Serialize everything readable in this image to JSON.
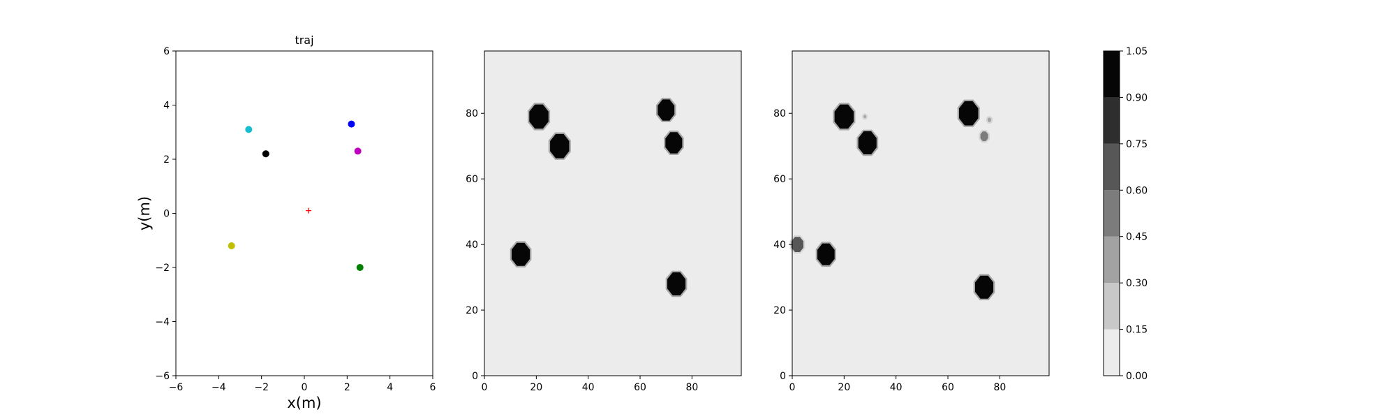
{
  "chart_data": [
    {
      "type": "scatter",
      "title": "traj",
      "xlabel": "x(m)",
      "ylabel": "y(m)",
      "xlim": [
        -6,
        6
      ],
      "ylim": [
        -6,
        6
      ],
      "xticks": [
        -6,
        -4,
        -2,
        0,
        2,
        4,
        6
      ],
      "yticks": [
        -6,
        -4,
        -2,
        0,
        2,
        4,
        6
      ],
      "grid": false,
      "points": [
        {
          "x": -2.6,
          "y": 3.1,
          "color": "#17becf",
          "marker": "dot"
        },
        {
          "x": 2.2,
          "y": 3.3,
          "color": "#0000ff",
          "marker": "dot"
        },
        {
          "x": -1.8,
          "y": 2.2,
          "color": "#000000",
          "marker": "dot"
        },
        {
          "x": 2.5,
          "y": 2.3,
          "color": "#bf00bf",
          "marker": "dot"
        },
        {
          "x": -3.4,
          "y": -1.2,
          "color": "#bfbf00",
          "marker": "dot"
        },
        {
          "x": 2.6,
          "y": -2.0,
          "color": "#008000",
          "marker": "dot"
        },
        {
          "x": 0.2,
          "y": 0.1,
          "color": "#ff0000",
          "marker": "plus"
        }
      ]
    },
    {
      "type": "heatmap",
      "xlim": [
        0,
        99
      ],
      "ylim": [
        0,
        99
      ],
      "xticks": [
        0,
        20,
        40,
        60,
        80
      ],
      "yticks": [
        0,
        20,
        40,
        60,
        80
      ],
      "background_level": 0.07,
      "blobs": [
        {
          "x": 21,
          "y": 79,
          "r": 4,
          "level": 1.0
        },
        {
          "x": 29,
          "y": 70,
          "r": 4,
          "level": 1.0
        },
        {
          "x": 70,
          "y": 81,
          "r": 3.5,
          "level": 1.0
        },
        {
          "x": 73,
          "y": 71,
          "r": 3.5,
          "level": 1.0
        },
        {
          "x": 14,
          "y": 37,
          "r": 3.8,
          "level": 1.0
        },
        {
          "x": 74,
          "y": 28,
          "r": 3.8,
          "level": 1.0
        }
      ]
    },
    {
      "type": "heatmap",
      "xlim": [
        0,
        99
      ],
      "ylim": [
        0,
        99
      ],
      "xticks": [
        0,
        20,
        40,
        60,
        80
      ],
      "yticks": [
        0,
        20,
        40,
        60,
        80
      ],
      "background_level": 0.07,
      "blobs": [
        {
          "x": 20,
          "y": 79,
          "r": 4,
          "level": 1.0
        },
        {
          "x": 29,
          "y": 71,
          "r": 3.8,
          "level": 1.0
        },
        {
          "x": 68,
          "y": 80,
          "r": 4,
          "level": 1.0
        },
        {
          "x": 74,
          "y": 73,
          "r": 1.6,
          "level": 0.55
        },
        {
          "x": 76,
          "y": 78,
          "r": 0.7,
          "level": 0.3
        },
        {
          "x": 28,
          "y": 79,
          "r": 0.5,
          "level": 0.3
        },
        {
          "x": 2,
          "y": 40,
          "r": 2.5,
          "level": 0.7
        },
        {
          "x": 13,
          "y": 37,
          "r": 3.6,
          "level": 1.0
        },
        {
          "x": 74,
          "y": 27,
          "r": 3.8,
          "level": 1.0
        }
      ]
    }
  ],
  "colorbar": {
    "levels": [
      0.0,
      0.15,
      0.3,
      0.45,
      0.6,
      0.75,
      0.9,
      1.05
    ],
    "tick_labels": [
      "0.00",
      "0.15",
      "0.30",
      "0.45",
      "0.60",
      "0.75",
      "0.90",
      "1.05"
    ],
    "colors": [
      "#ececec",
      "#c8c8c8",
      "#a2a2a2",
      "#7c7c7c",
      "#575757",
      "#2e2e2e",
      "#060606"
    ]
  }
}
